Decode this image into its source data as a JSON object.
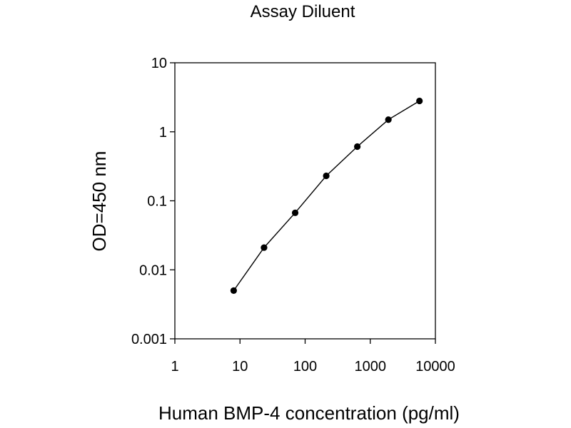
{
  "chart_data": {
    "type": "line",
    "title": "Assay Diluent",
    "xlabel": "Human BMP-4 concentration (pg/ml)",
    "ylabel": "OD=450 nm",
    "x_scale": "log",
    "y_scale": "log",
    "xlim": [
      1,
      10000
    ],
    "ylim": [
      0.001,
      10
    ],
    "x_ticks": [
      "1",
      "10",
      "100",
      "1000",
      "10000"
    ],
    "y_ticks": [
      "0.001",
      "0.01",
      "0.1",
      "1",
      "10"
    ],
    "grid": false,
    "legend": "none",
    "series": [
      {
        "x": [
          8,
          23.4,
          70.3,
          210.9,
          632.8,
          1898.4,
          5695.3
        ],
        "y": [
          0.005,
          0.021,
          0.067,
          0.23,
          0.61,
          1.5,
          2.8
        ],
        "color": "#000000",
        "marker": "circle"
      }
    ]
  }
}
